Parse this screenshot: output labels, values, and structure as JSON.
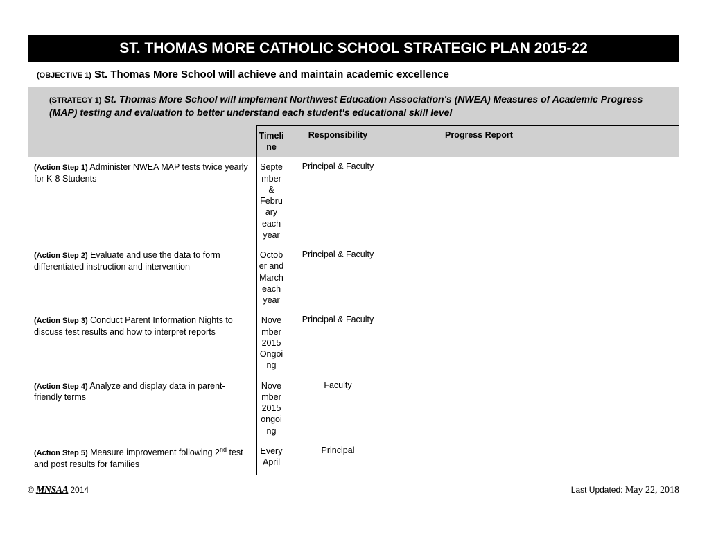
{
  "title": "ST. THOMAS MORE CATHOLIC SCHOOL STRATEGIC PLAN 2015-22",
  "objective": {
    "label": "(OBJECTIVE 1)",
    "text": "St. Thomas More School will achieve and maintain academic excellence"
  },
  "strategy": {
    "label": "(STRATEGY 1)",
    "text": "St. Thomas More School will implement Northwest Education Association's (NWEA) Measures of Academic Progress (MAP) testing and evaluation to better understand each student's educational skill level"
  },
  "headers": {
    "timeline": "Timeline",
    "responsibility": "Responsibility",
    "progress": "Progress Report"
  },
  "rows": [
    {
      "label": "(Action Step 1)",
      "text": " Administer NWEA MAP tests twice yearly for K-8 Students",
      "timeline": "September & February each year",
      "responsibility": "Principal & Faculty",
      "progress": "",
      "extra": ""
    },
    {
      "label": "(Action Step 2)",
      "text": " Evaluate and use the data to form differentiated instruction and intervention",
      "timeline": "October and March each year",
      "responsibility": "Principal & Faculty",
      "progress": "",
      "extra": ""
    },
    {
      "label": "(Action Step 3)",
      "text": " Conduct Parent Information Nights to discuss test results and how to interpret reports",
      "timeline": "November 2015\nOngoing",
      "responsibility": "Principal & Faculty",
      "progress": "",
      "extra": ""
    },
    {
      "label": "(Action Step 4)",
      "text": " Analyze and display data in parent-friendly terms",
      "timeline": "November\n2015 ongoing",
      "responsibility": "Faculty",
      "progress": "",
      "extra": ""
    },
    {
      "label": "(Action Step 5)",
      "text_pre": " Measure improvement following 2",
      "text_sup": "nd",
      "text_post": " test and post results for families",
      "timeline": "Every April",
      "responsibility": "Principal",
      "progress": "",
      "extra": ""
    }
  ],
  "footer": {
    "copyright": "©",
    "org": "MNSAA",
    "year": "2014",
    "updated_label": "Last Updated:",
    "updated_date": "May 22, 2018"
  },
  "colors": {
    "header_bg": "#000000",
    "header_text": "#ffffff",
    "strategy_bg": "#d0d0d0",
    "border": "#000000",
    "page_bg": "#ffffff"
  }
}
